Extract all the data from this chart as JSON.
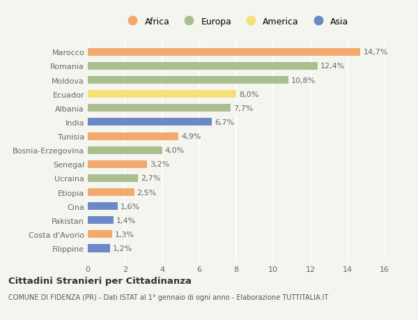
{
  "countries": [
    "Marocco",
    "Romania",
    "Moldova",
    "Ecuador",
    "Albania",
    "India",
    "Tunisia",
    "Bosnia-Erzegovina",
    "Senegal",
    "Ucraina",
    "Etiopia",
    "Cina",
    "Pakistan",
    "Costa d'Avorio",
    "Filippine"
  ],
  "values": [
    14.7,
    12.4,
    10.8,
    8.0,
    7.7,
    6.7,
    4.9,
    4.0,
    3.2,
    2.7,
    2.5,
    1.6,
    1.4,
    1.3,
    1.2
  ],
  "labels": [
    "14,7%",
    "12,4%",
    "10,8%",
    "8,0%",
    "7,7%",
    "6,7%",
    "4,9%",
    "4,0%",
    "3,2%",
    "2,7%",
    "2,5%",
    "1,6%",
    "1,4%",
    "1,3%",
    "1,2%"
  ],
  "continents": [
    "Africa",
    "Europa",
    "Europa",
    "America",
    "Europa",
    "Asia",
    "Africa",
    "Europa",
    "Africa",
    "Europa",
    "Africa",
    "Asia",
    "Asia",
    "Africa",
    "Asia"
  ],
  "colors": {
    "Africa": "#F2A96E",
    "Europa": "#ABBE8F",
    "America": "#F5E07A",
    "Asia": "#6B88C8"
  },
  "background_color": "#f5f5f0",
  "title": "Cittadini Stranieri per Cittadinanza",
  "subtitle": "COMUNE DI FIDENZA (PR) - Dati ISTAT al 1° gennaio di ogni anno - Elaborazione TUTTITALIA.IT",
  "xlim": [
    0,
    16
  ],
  "xticks": [
    0,
    2,
    4,
    6,
    8,
    10,
    12,
    14,
    16
  ],
  "legend_order": [
    "Africa",
    "Europa",
    "America",
    "Asia"
  ]
}
